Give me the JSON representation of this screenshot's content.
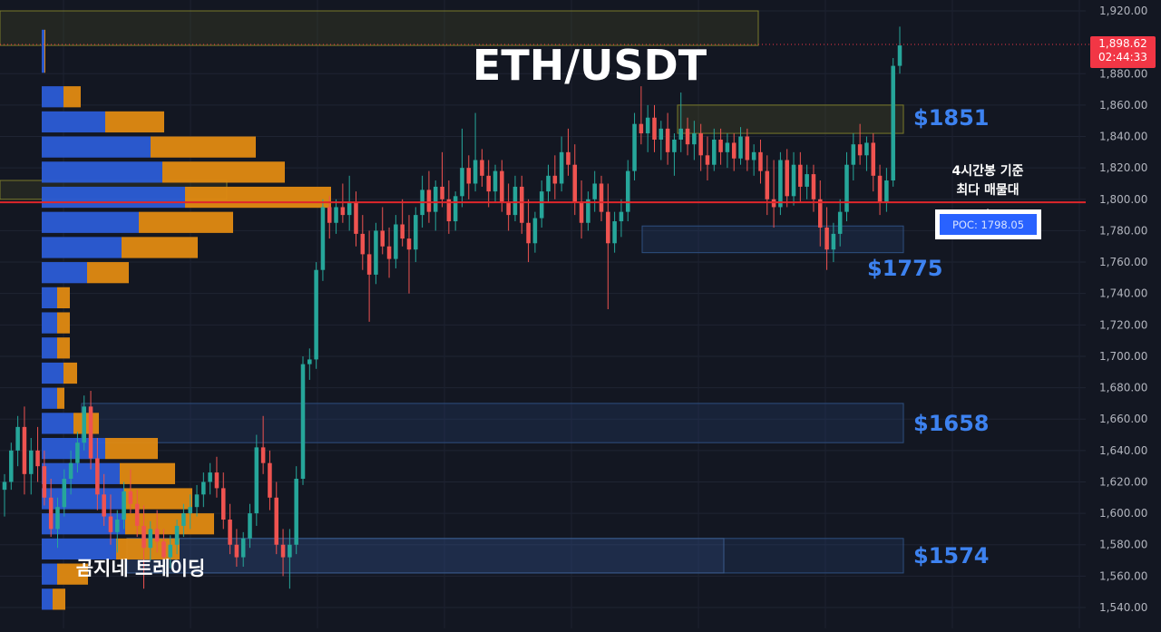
{
  "chart_data": {
    "type": "candlestick",
    "title": "ETH/USDT",
    "watermark": "곰지네 트레이딩",
    "price_axis": {
      "ticks": [
        1540,
        1560,
        1580,
        1600,
        1620,
        1640,
        1660,
        1680,
        1700,
        1720,
        1740,
        1760,
        1780,
        1800,
        1820,
        1840,
        1860,
        1880,
        1920
      ],
      "tick_labels": [
        "1,540.00",
        "1,560.00",
        "1,580.00",
        "1,600.00",
        "1,620.00",
        "1,640.00",
        "1,660.00",
        "1,680.00",
        "1,700.00",
        "1,720.00",
        "1,740.00",
        "1,760.00",
        "1,780.00",
        "1,800.00",
        "1,820.00",
        "1,840.00",
        "1,860.00",
        "1,880.00",
        "1,920.00"
      ],
      "ylim": [
        1533,
        1924
      ]
    },
    "current_price": {
      "value": 1898.62,
      "label": "1,898.62",
      "countdown": "02:44:33",
      "color": "#f23645"
    },
    "poc": {
      "value": 1798.05,
      "label": "POC: 1798.05",
      "note_line1": "4시간봉 기준",
      "note_line2": "최다 매물대",
      "color": "#e0272b"
    },
    "levels": [
      {
        "label": "$1851",
        "price": 1851,
        "low": 1842,
        "high": 1860,
        "kind": "resistance"
      },
      {
        "label": "$1775",
        "price": 1775,
        "low": 1766,
        "high": 1783,
        "kind": "support"
      },
      {
        "label": "$1658",
        "price": 1658,
        "low": 1645,
        "high": 1670,
        "kind": "support"
      },
      {
        "label": "$1574",
        "price": 1574,
        "low": 1562,
        "high": 1584,
        "kind": "support"
      }
    ],
    "volume_profile": {
      "rows": [
        {
          "low": 1880,
          "high": 1908,
          "up": 3,
          "down": 1
        },
        {
          "low": 1858,
          "high": 1872,
          "up": 24,
          "down": 19
        },
        {
          "low": 1842,
          "high": 1856,
          "up": 70,
          "down": 65
        },
        {
          "low": 1826,
          "high": 1840,
          "up": 120,
          "down": 116
        },
        {
          "low": 1810,
          "high": 1824,
          "up": 133,
          "down": 135
        },
        {
          "low": 1794,
          "high": 1808,
          "up": 158,
          "down": 161
        },
        {
          "low": 1778,
          "high": 1792,
          "up": 107,
          "down": 104
        },
        {
          "low": 1762,
          "high": 1776,
          "up": 88,
          "down": 84
        },
        {
          "low": 1746,
          "high": 1760,
          "up": 50,
          "down": 46
        },
        {
          "low": 1730,
          "high": 1744,
          "up": 17,
          "down": 14
        },
        {
          "low": 1714,
          "high": 1728,
          "up": 17,
          "down": 14
        },
        {
          "low": 1698,
          "high": 1712,
          "up": 17,
          "down": 14
        },
        {
          "low": 1682,
          "high": 1696,
          "up": 24,
          "down": 15
        },
        {
          "low": 1666,
          "high": 1680,
          "up": 17,
          "down": 8
        },
        {
          "low": 1650,
          "high": 1664,
          "up": 35,
          "down": 28
        },
        {
          "low": 1634,
          "high": 1648,
          "up": 70,
          "down": 58
        },
        {
          "low": 1618,
          "high": 1632,
          "up": 86,
          "down": 61
        },
        {
          "low": 1602,
          "high": 1616,
          "up": 90,
          "down": 76
        },
        {
          "low": 1586,
          "high": 1600,
          "up": 92,
          "down": 98
        },
        {
          "low": 1570,
          "high": 1584,
          "up": 82,
          "down": 70
        },
        {
          "low": 1554,
          "high": 1568,
          "up": 17,
          "down": 34
        },
        {
          "low": 1538,
          "high": 1552,
          "up": 12,
          "down": 14
        }
      ]
    },
    "candles": [
      {
        "o": 1615,
        "h": 1625,
        "l": 1598,
        "c": 1620
      },
      {
        "o": 1620,
        "h": 1645,
        "l": 1615,
        "c": 1640
      },
      {
        "o": 1640,
        "h": 1662,
        "l": 1630,
        "c": 1655
      },
      {
        "o": 1655,
        "h": 1668,
        "l": 1612,
        "c": 1625
      },
      {
        "o": 1625,
        "h": 1648,
        "l": 1612,
        "c": 1640
      },
      {
        "o": 1640,
        "h": 1655,
        "l": 1620,
        "c": 1630
      },
      {
        "o": 1630,
        "h": 1640,
        "l": 1605,
        "c": 1610
      },
      {
        "o": 1610,
        "h": 1622,
        "l": 1585,
        "c": 1590
      },
      {
        "o": 1590,
        "h": 1610,
        "l": 1578,
        "c": 1604
      },
      {
        "o": 1604,
        "h": 1628,
        "l": 1598,
        "c": 1622
      },
      {
        "o": 1622,
        "h": 1640,
        "l": 1612,
        "c": 1632
      },
      {
        "o": 1632,
        "h": 1652,
        "l": 1626,
        "c": 1645
      },
      {
        "o": 1645,
        "h": 1675,
        "l": 1640,
        "c": 1668
      },
      {
        "o": 1668,
        "h": 1678,
        "l": 1628,
        "c": 1635
      },
      {
        "o": 1635,
        "h": 1648,
        "l": 1602,
        "c": 1612
      },
      {
        "o": 1612,
        "h": 1625,
        "l": 1592,
        "c": 1598
      },
      {
        "o": 1598,
        "h": 1612,
        "l": 1580,
        "c": 1588
      },
      {
        "o": 1588,
        "h": 1602,
        "l": 1575,
        "c": 1596
      },
      {
        "o": 1596,
        "h": 1620,
        "l": 1590,
        "c": 1614
      },
      {
        "o": 1614,
        "h": 1628,
        "l": 1600,
        "c": 1606
      },
      {
        "o": 1606,
        "h": 1615,
        "l": 1585,
        "c": 1592
      },
      {
        "o": 1592,
        "h": 1605,
        "l": 1552,
        "c": 1578
      },
      {
        "o": 1578,
        "h": 1595,
        "l": 1570,
        "c": 1590
      },
      {
        "o": 1590,
        "h": 1602,
        "l": 1575,
        "c": 1582
      },
      {
        "o": 1582,
        "h": 1590,
        "l": 1566,
        "c": 1572
      },
      {
        "o": 1572,
        "h": 1586,
        "l": 1565,
        "c": 1580
      },
      {
        "o": 1580,
        "h": 1596,
        "l": 1574,
        "c": 1592
      },
      {
        "o": 1592,
        "h": 1606,
        "l": 1585,
        "c": 1600
      },
      {
        "o": 1600,
        "h": 1612,
        "l": 1590,
        "c": 1604
      },
      {
        "o": 1604,
        "h": 1618,
        "l": 1598,
        "c": 1612
      },
      {
        "o": 1612,
        "h": 1626,
        "l": 1604,
        "c": 1620
      },
      {
        "o": 1620,
        "h": 1632,
        "l": 1612,
        "c": 1626
      },
      {
        "o": 1626,
        "h": 1636,
        "l": 1610,
        "c": 1616
      },
      {
        "o": 1616,
        "h": 1626,
        "l": 1590,
        "c": 1596
      },
      {
        "o": 1596,
        "h": 1606,
        "l": 1574,
        "c": 1580
      },
      {
        "o": 1580,
        "h": 1590,
        "l": 1566,
        "c": 1572
      },
      {
        "o": 1572,
        "h": 1588,
        "l": 1566,
        "c": 1584
      },
      {
        "o": 1584,
        "h": 1606,
        "l": 1578,
        "c": 1600
      },
      {
        "o": 1600,
        "h": 1650,
        "l": 1592,
        "c": 1642
      },
      {
        "o": 1642,
        "h": 1662,
        "l": 1625,
        "c": 1632
      },
      {
        "o": 1632,
        "h": 1640,
        "l": 1602,
        "c": 1610
      },
      {
        "o": 1610,
        "h": 1620,
        "l": 1574,
        "c": 1580
      },
      {
        "o": 1580,
        "h": 1590,
        "l": 1560,
        "c": 1572
      },
      {
        "o": 1572,
        "h": 1590,
        "l": 1552,
        "c": 1580
      },
      {
        "o": 1580,
        "h": 1630,
        "l": 1574,
        "c": 1622
      },
      {
        "o": 1622,
        "h": 1700,
        "l": 1618,
        "c": 1695
      },
      {
        "o": 1695,
        "h": 1705,
        "l": 1685,
        "c": 1698
      },
      {
        "o": 1698,
        "h": 1760,
        "l": 1692,
        "c": 1755
      },
      {
        "o": 1755,
        "h": 1800,
        "l": 1748,
        "c": 1795
      },
      {
        "o": 1795,
        "h": 1802,
        "l": 1775,
        "c": 1785
      },
      {
        "o": 1785,
        "h": 1800,
        "l": 1778,
        "c": 1795
      },
      {
        "o": 1795,
        "h": 1810,
        "l": 1785,
        "c": 1790
      },
      {
        "o": 1790,
        "h": 1815,
        "l": 1780,
        "c": 1798
      },
      {
        "o": 1798,
        "h": 1805,
        "l": 1770,
        "c": 1778
      },
      {
        "o": 1778,
        "h": 1790,
        "l": 1755,
        "c": 1765
      },
      {
        "o": 1765,
        "h": 1780,
        "l": 1722,
        "c": 1752
      },
      {
        "o": 1752,
        "h": 1785,
        "l": 1746,
        "c": 1780
      },
      {
        "o": 1780,
        "h": 1795,
        "l": 1765,
        "c": 1770
      },
      {
        "o": 1770,
        "h": 1782,
        "l": 1750,
        "c": 1762
      },
      {
        "o": 1762,
        "h": 1790,
        "l": 1756,
        "c": 1784
      },
      {
        "o": 1784,
        "h": 1800,
        "l": 1770,
        "c": 1775
      },
      {
        "o": 1775,
        "h": 1790,
        "l": 1740,
        "c": 1768
      },
      {
        "o": 1768,
        "h": 1795,
        "l": 1760,
        "c": 1790
      },
      {
        "o": 1790,
        "h": 1815,
        "l": 1782,
        "c": 1806
      },
      {
        "o": 1806,
        "h": 1818,
        "l": 1785,
        "c": 1792
      },
      {
        "o": 1792,
        "h": 1812,
        "l": 1780,
        "c": 1808
      },
      {
        "o": 1808,
        "h": 1830,
        "l": 1795,
        "c": 1800
      },
      {
        "o": 1800,
        "h": 1812,
        "l": 1778,
        "c": 1786
      },
      {
        "o": 1786,
        "h": 1805,
        "l": 1780,
        "c": 1802
      },
      {
        "o": 1802,
        "h": 1845,
        "l": 1795,
        "c": 1820
      },
      {
        "o": 1820,
        "h": 1828,
        "l": 1800,
        "c": 1810
      },
      {
        "o": 1810,
        "h": 1855,
        "l": 1805,
        "c": 1825
      },
      {
        "o": 1825,
        "h": 1832,
        "l": 1808,
        "c": 1815
      },
      {
        "o": 1815,
        "h": 1825,
        "l": 1795,
        "c": 1805
      },
      {
        "o": 1805,
        "h": 1822,
        "l": 1798,
        "c": 1818
      },
      {
        "o": 1818,
        "h": 1825,
        "l": 1792,
        "c": 1798
      },
      {
        "o": 1798,
        "h": 1810,
        "l": 1780,
        "c": 1790
      },
      {
        "o": 1790,
        "h": 1815,
        "l": 1786,
        "c": 1808
      },
      {
        "o": 1808,
        "h": 1815,
        "l": 1778,
        "c": 1785
      },
      {
        "o": 1785,
        "h": 1800,
        "l": 1760,
        "c": 1772
      },
      {
        "o": 1772,
        "h": 1792,
        "l": 1766,
        "c": 1788
      },
      {
        "o": 1788,
        "h": 1812,
        "l": 1782,
        "c": 1805
      },
      {
        "o": 1805,
        "h": 1822,
        "l": 1798,
        "c": 1815
      },
      {
        "o": 1815,
        "h": 1828,
        "l": 1800,
        "c": 1810
      },
      {
        "o": 1810,
        "h": 1840,
        "l": 1805,
        "c": 1830
      },
      {
        "o": 1830,
        "h": 1845,
        "l": 1815,
        "c": 1822
      },
      {
        "o": 1822,
        "h": 1835,
        "l": 1790,
        "c": 1798
      },
      {
        "o": 1798,
        "h": 1812,
        "l": 1775,
        "c": 1785
      },
      {
        "o": 1785,
        "h": 1805,
        "l": 1780,
        "c": 1800
      },
      {
        "o": 1800,
        "h": 1818,
        "l": 1792,
        "c": 1810
      },
      {
        "o": 1810,
        "h": 1815,
        "l": 1786,
        "c": 1792
      },
      {
        "o": 1792,
        "h": 1810,
        "l": 1730,
        "c": 1772
      },
      {
        "o": 1772,
        "h": 1792,
        "l": 1766,
        "c": 1786
      },
      {
        "o": 1786,
        "h": 1800,
        "l": 1776,
        "c": 1792
      },
      {
        "o": 1792,
        "h": 1825,
        "l": 1786,
        "c": 1818
      },
      {
        "o": 1818,
        "h": 1855,
        "l": 1812,
        "c": 1848
      },
      {
        "o": 1848,
        "h": 1872,
        "l": 1835,
        "c": 1842
      },
      {
        "o": 1842,
        "h": 1860,
        "l": 1830,
        "c": 1852
      },
      {
        "o": 1852,
        "h": 1860,
        "l": 1830,
        "c": 1838
      },
      {
        "o": 1838,
        "h": 1850,
        "l": 1825,
        "c": 1845
      },
      {
        "o": 1845,
        "h": 1855,
        "l": 1822,
        "c": 1830
      },
      {
        "o": 1830,
        "h": 1842,
        "l": 1815,
        "c": 1838
      },
      {
        "o": 1838,
        "h": 1868,
        "l": 1830,
        "c": 1845
      },
      {
        "o": 1845,
        "h": 1852,
        "l": 1828,
        "c": 1835
      },
      {
        "o": 1835,
        "h": 1850,
        "l": 1825,
        "c": 1842
      },
      {
        "o": 1842,
        "h": 1848,
        "l": 1818,
        "c": 1828
      },
      {
        "o": 1828,
        "h": 1840,
        "l": 1812,
        "c": 1822
      },
      {
        "o": 1822,
        "h": 1845,
        "l": 1818,
        "c": 1838
      },
      {
        "o": 1838,
        "h": 1845,
        "l": 1822,
        "c": 1830
      },
      {
        "o": 1830,
        "h": 1842,
        "l": 1820,
        "c": 1836
      },
      {
        "o": 1836,
        "h": 1842,
        "l": 1818,
        "c": 1826
      },
      {
        "o": 1826,
        "h": 1846,
        "l": 1822,
        "c": 1840
      },
      {
        "o": 1840,
        "h": 1845,
        "l": 1818,
        "c": 1825
      },
      {
        "o": 1825,
        "h": 1835,
        "l": 1815,
        "c": 1830
      },
      {
        "o": 1830,
        "h": 1838,
        "l": 1810,
        "c": 1818
      },
      {
        "o": 1818,
        "h": 1828,
        "l": 1790,
        "c": 1800
      },
      {
        "o": 1800,
        "h": 1825,
        "l": 1782,
        "c": 1795
      },
      {
        "o": 1795,
        "h": 1830,
        "l": 1790,
        "c": 1825
      },
      {
        "o": 1825,
        "h": 1832,
        "l": 1795,
        "c": 1802
      },
      {
        "o": 1802,
        "h": 1830,
        "l": 1796,
        "c": 1822
      },
      {
        "o": 1822,
        "h": 1830,
        "l": 1798,
        "c": 1808
      },
      {
        "o": 1808,
        "h": 1822,
        "l": 1800,
        "c": 1816
      },
      {
        "o": 1816,
        "h": 1822,
        "l": 1792,
        "c": 1800
      },
      {
        "o": 1800,
        "h": 1812,
        "l": 1770,
        "c": 1782
      },
      {
        "o": 1782,
        "h": 1795,
        "l": 1755,
        "c": 1768
      },
      {
        "o": 1768,
        "h": 1785,
        "l": 1760,
        "c": 1778
      },
      {
        "o": 1778,
        "h": 1800,
        "l": 1770,
        "c": 1792
      },
      {
        "o": 1792,
        "h": 1830,
        "l": 1786,
        "c": 1822
      },
      {
        "o": 1822,
        "h": 1842,
        "l": 1812,
        "c": 1835
      },
      {
        "o": 1835,
        "h": 1848,
        "l": 1822,
        "c": 1828
      },
      {
        "o": 1828,
        "h": 1840,
        "l": 1818,
        "c": 1836
      },
      {
        "o": 1836,
        "h": 1842,
        "l": 1805,
        "c": 1815
      },
      {
        "o": 1815,
        "h": 1822,
        "l": 1790,
        "c": 1798
      },
      {
        "o": 1798,
        "h": 1820,
        "l": 1792,
        "c": 1812
      },
      {
        "o": 1812,
        "h": 1890,
        "l": 1808,
        "c": 1885
      },
      {
        "o": 1885,
        "h": 1910,
        "l": 1880,
        "c": 1898
      }
    ],
    "colors": {
      "up": "#26a69a",
      "down": "#ef5350",
      "profile_up": "#2b5cd6",
      "profile_down": "#e08a12",
      "level_text": "#3d82f0",
      "background": "#131722"
    }
  }
}
